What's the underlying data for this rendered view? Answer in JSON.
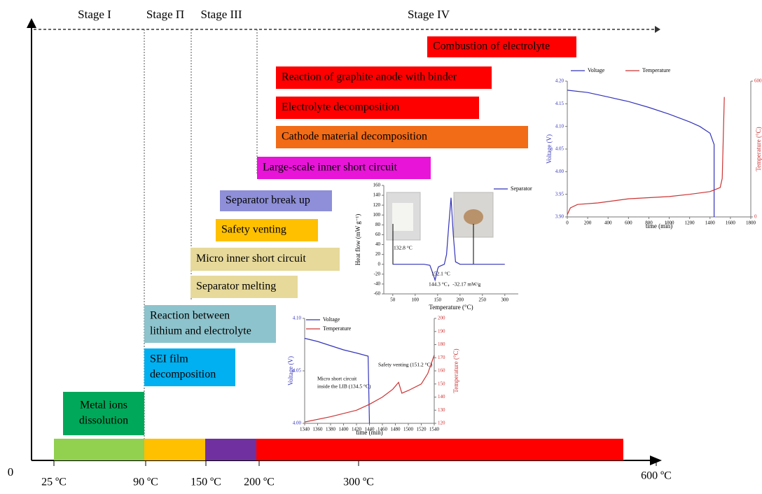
{
  "stages": [
    "Stage I",
    "Stage Π",
    "Stage III",
    "Stage IV"
  ],
  "temperature_axis": {
    "origin": "0",
    "labels": [
      "25 ºC",
      "90 ºC",
      "150 ºC",
      "200 ºC",
      "300 ºC",
      "600 ºC"
    ]
  },
  "events": [
    {
      "lines": [
        "Combustion of electrolyte"
      ],
      "color": "#ff0000"
    },
    {
      "lines": [
        "Reaction of graphite anode with binder"
      ],
      "color": "#ff0000"
    },
    {
      "lines": [
        "Electrolyte decomposition"
      ],
      "color": "#ff0000"
    },
    {
      "lines": [
        "Cathode material decomposition"
      ],
      "color": "#f26b16"
    },
    {
      "lines": [
        "Large-scale inner short circuit"
      ],
      "color": "#e815d8"
    },
    {
      "lines": [
        "Separator break up"
      ],
      "color": "#8e8fd8"
    },
    {
      "lines": [
        "Safety venting"
      ],
      "color": "#ffc000"
    },
    {
      "lines": [
        "Micro inner short circuit"
      ],
      "color": "#e6d99a"
    },
    {
      "lines": [
        "Separator melting"
      ],
      "color": "#e6d99a"
    },
    {
      "lines": [
        "Reaction between",
        "lithium and electrolyte"
      ],
      "color": "#8dc3cc"
    },
    {
      "lines": [
        "SEI film",
        "decomposition"
      ],
      "color": "#00b0f0"
    },
    {
      "lines": [
        "Metal ions",
        "dissolution"
      ],
      "color": "#00a859"
    }
  ],
  "stage_bar": {
    "colors": [
      "#92d050",
      "#ffc000",
      "#7030a0",
      "#ff0000"
    ]
  },
  "insets": [
    {
      "type": "line",
      "x_label": "time (min)",
      "y_label": "Voltage (V)",
      "y2_label": "Temperature (°C)",
      "xlim": [
        0,
        1800
      ],
      "xticks": [
        0,
        200,
        400,
        600,
        800,
        1000,
        1200,
        1400,
        1600,
        1800
      ],
      "ylim": [
        3.9,
        4.2
      ],
      "yticks": [
        {
          "value": 3.9,
          "label": "3.90"
        },
        3.95,
        {
          "value": 4.0,
          "label": "4.00"
        },
        4.05,
        {
          "value": 4.1,
          "label": "4.10"
        },
        4.15,
        {
          "value": 4.2,
          "label": "4.20"
        }
      ],
      "y2lim": [
        0,
        600
      ],
      "y2ticks": [
        0,
        600
      ],
      "series": [
        {
          "name": "Voltage",
          "color": "#3333bb",
          "x": [
            0,
            200,
            400,
            600,
            800,
            1000,
            1200,
            1300,
            1400,
            1440,
            1440
          ],
          "values": [
            4.18,
            4.175,
            4.165,
            4.155,
            4.142,
            4.127,
            4.11,
            4.1,
            4.085,
            4.06,
            3.9
          ]
        },
        {
          "name": "Temperature",
          "color": "#cc3333",
          "axis": "y2",
          "x": [
            0,
            30,
            100,
            300,
            600,
            800,
            1000,
            1200,
            1400,
            1500,
            1520,
            1530,
            1540
          ],
          "values": [
            10,
            40,
            55,
            62,
            80,
            85,
            90,
            100,
            112,
            130,
            170,
            350,
            530
          ]
        }
      ],
      "annotations": []
    },
    {
      "type": "line",
      "x_label": "Temperature (°C)",
      "y_label": "Heat flow (mW g⁻¹)",
      "xlim": [
        30,
        330
      ],
      "xticks": [
        50,
        100,
        150,
        200,
        250,
        300
      ],
      "ylim": [
        -60,
        160
      ],
      "yticks": [
        -60,
        -40,
        -20,
        0,
        20,
        40,
        60,
        80,
        100,
        120,
        140,
        160
      ],
      "series": [
        {
          "name": "Separator",
          "color": "#3333bb",
          "x": [
            50,
            120,
            132.8,
            140,
            144.3,
            150,
            152.1,
            165,
            170,
            175,
            180,
            185,
            190,
            200,
            300
          ],
          "values": [
            0,
            0,
            -2,
            -20,
            -32.17,
            -10,
            -5,
            0,
            20,
            80,
            135,
            60,
            5,
            0,
            0
          ]
        }
      ],
      "annotations": [
        "132.8 °C",
        "152.1 °C",
        "144.3 °C，-32.17 mW/g"
      ]
    },
    {
      "type": "line",
      "x_label": "time (min)",
      "y_label": "Voltage (V)",
      "y2_label": "Temperature (°C)",
      "xlim": [
        1340,
        1540
      ],
      "xticks": [
        1340,
        1360,
        1380,
        1400,
        1420,
        1440,
        1460,
        1480,
        1500,
        1520,
        1540
      ],
      "ylim": [
        4.0,
        4.1
      ],
      "yticks": [
        {
          "value": 4.0,
          "label": "4.00"
        },
        4.05,
        {
          "value": 4.1,
          "label": "4.10"
        }
      ],
      "y2lim": [
        120,
        200
      ],
      "y2ticks": [
        120,
        130,
        140,
        150,
        160,
        170,
        180,
        190,
        200
      ],
      "series": [
        {
          "name": "Voltage",
          "color": "#3333bb",
          "x": [
            1340,
            1360,
            1380,
            1400,
            1420,
            1438,
            1440
          ],
          "values": [
            4.081,
            4.078,
            4.074,
            4.07,
            4.067,
            4.064,
            4.0
          ]
        },
        {
          "name": "Temperature",
          "color": "#cc3333",
          "axis": "y2",
          "x": [
            1340,
            1380,
            1420,
            1440,
            1460,
            1476,
            1485,
            1490,
            1500,
            1520,
            1530,
            1540
          ],
          "values": [
            121,
            125,
            130,
            134.5,
            140,
            146,
            151.2,
            143,
            145,
            150,
            158,
            172
          ]
        }
      ],
      "annotations": [
        "Micro short circuit",
        "inside the LIB (134.5 °C)",
        "Safety venting (151.2 °C)"
      ]
    }
  ]
}
